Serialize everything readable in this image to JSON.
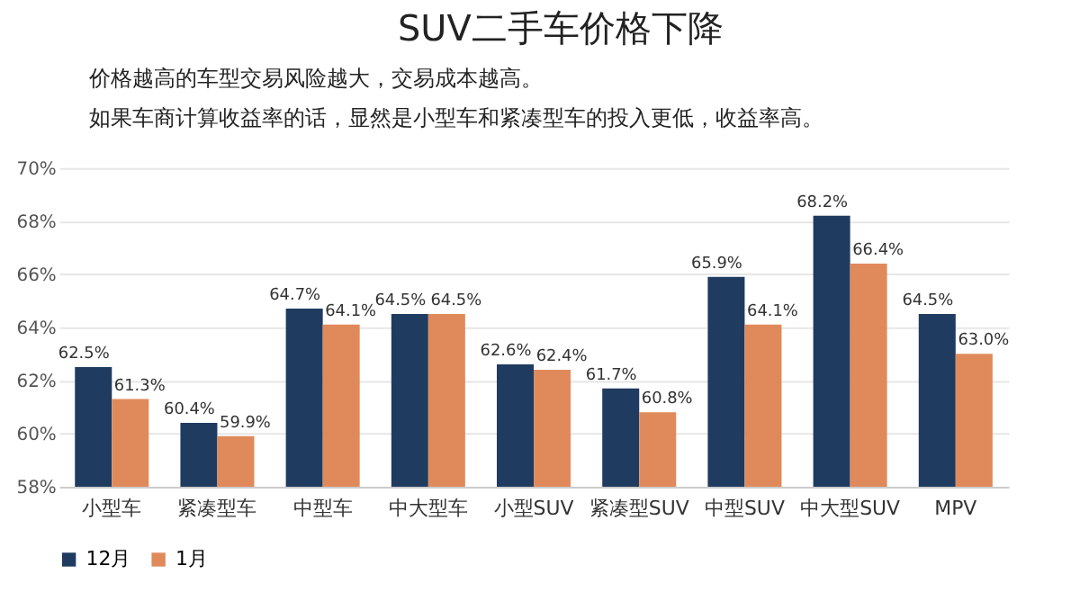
{
  "chart_data": {
    "type": "bar",
    "title": "SUV二手车价格下降",
    "annotations": [
      "价格越高的车型交易风险越大，交易成本越高。",
      "如果车商计算收益率的话，显然是小型车和紧凑型车的投入更低，收益率高。"
    ],
    "categories": [
      "小型车",
      "紧凑型车",
      "中型车",
      "中大型车",
      "小型SUV",
      "紧凑型SUV",
      "中型SUV",
      "中大型SUV",
      "MPV"
    ],
    "series": [
      {
        "name": "12月",
        "color": "#1f3b60",
        "values": [
          62.5,
          60.4,
          64.7,
          64.5,
          62.6,
          61.7,
          65.9,
          68.2,
          64.5
        ],
        "value_labels": [
          "62.5%",
          "60.4%",
          "64.7%",
          "64.5%",
          "62.6%",
          "61.7%",
          "65.9%",
          "68.2%",
          "64.5%"
        ]
      },
      {
        "name": "1月",
        "color": "#e08a5c",
        "values": [
          61.3,
          59.9,
          64.1,
          64.5,
          62.4,
          60.8,
          64.1,
          66.4,
          63.0
        ],
        "value_labels": [
          "61.3%",
          "59.9%",
          "64.1%",
          "64.5%",
          "62.4%",
          "60.8%",
          "64.1%",
          "66.4%",
          "63.0%"
        ]
      }
    ],
    "ylim": [
      58,
      70
    ],
    "yticks": [
      {
        "value": 58,
        "label": "58%"
      },
      {
        "value": 60,
        "label": "60%"
      },
      {
        "value": 62,
        "label": "62%"
      },
      {
        "value": 64,
        "label": "64%"
      },
      {
        "value": 66,
        "label": "66%"
      },
      {
        "value": 68,
        "label": "68%"
      },
      {
        "value": 70,
        "label": "70%"
      }
    ],
    "grid": "y",
    "legend": "bottom"
  }
}
